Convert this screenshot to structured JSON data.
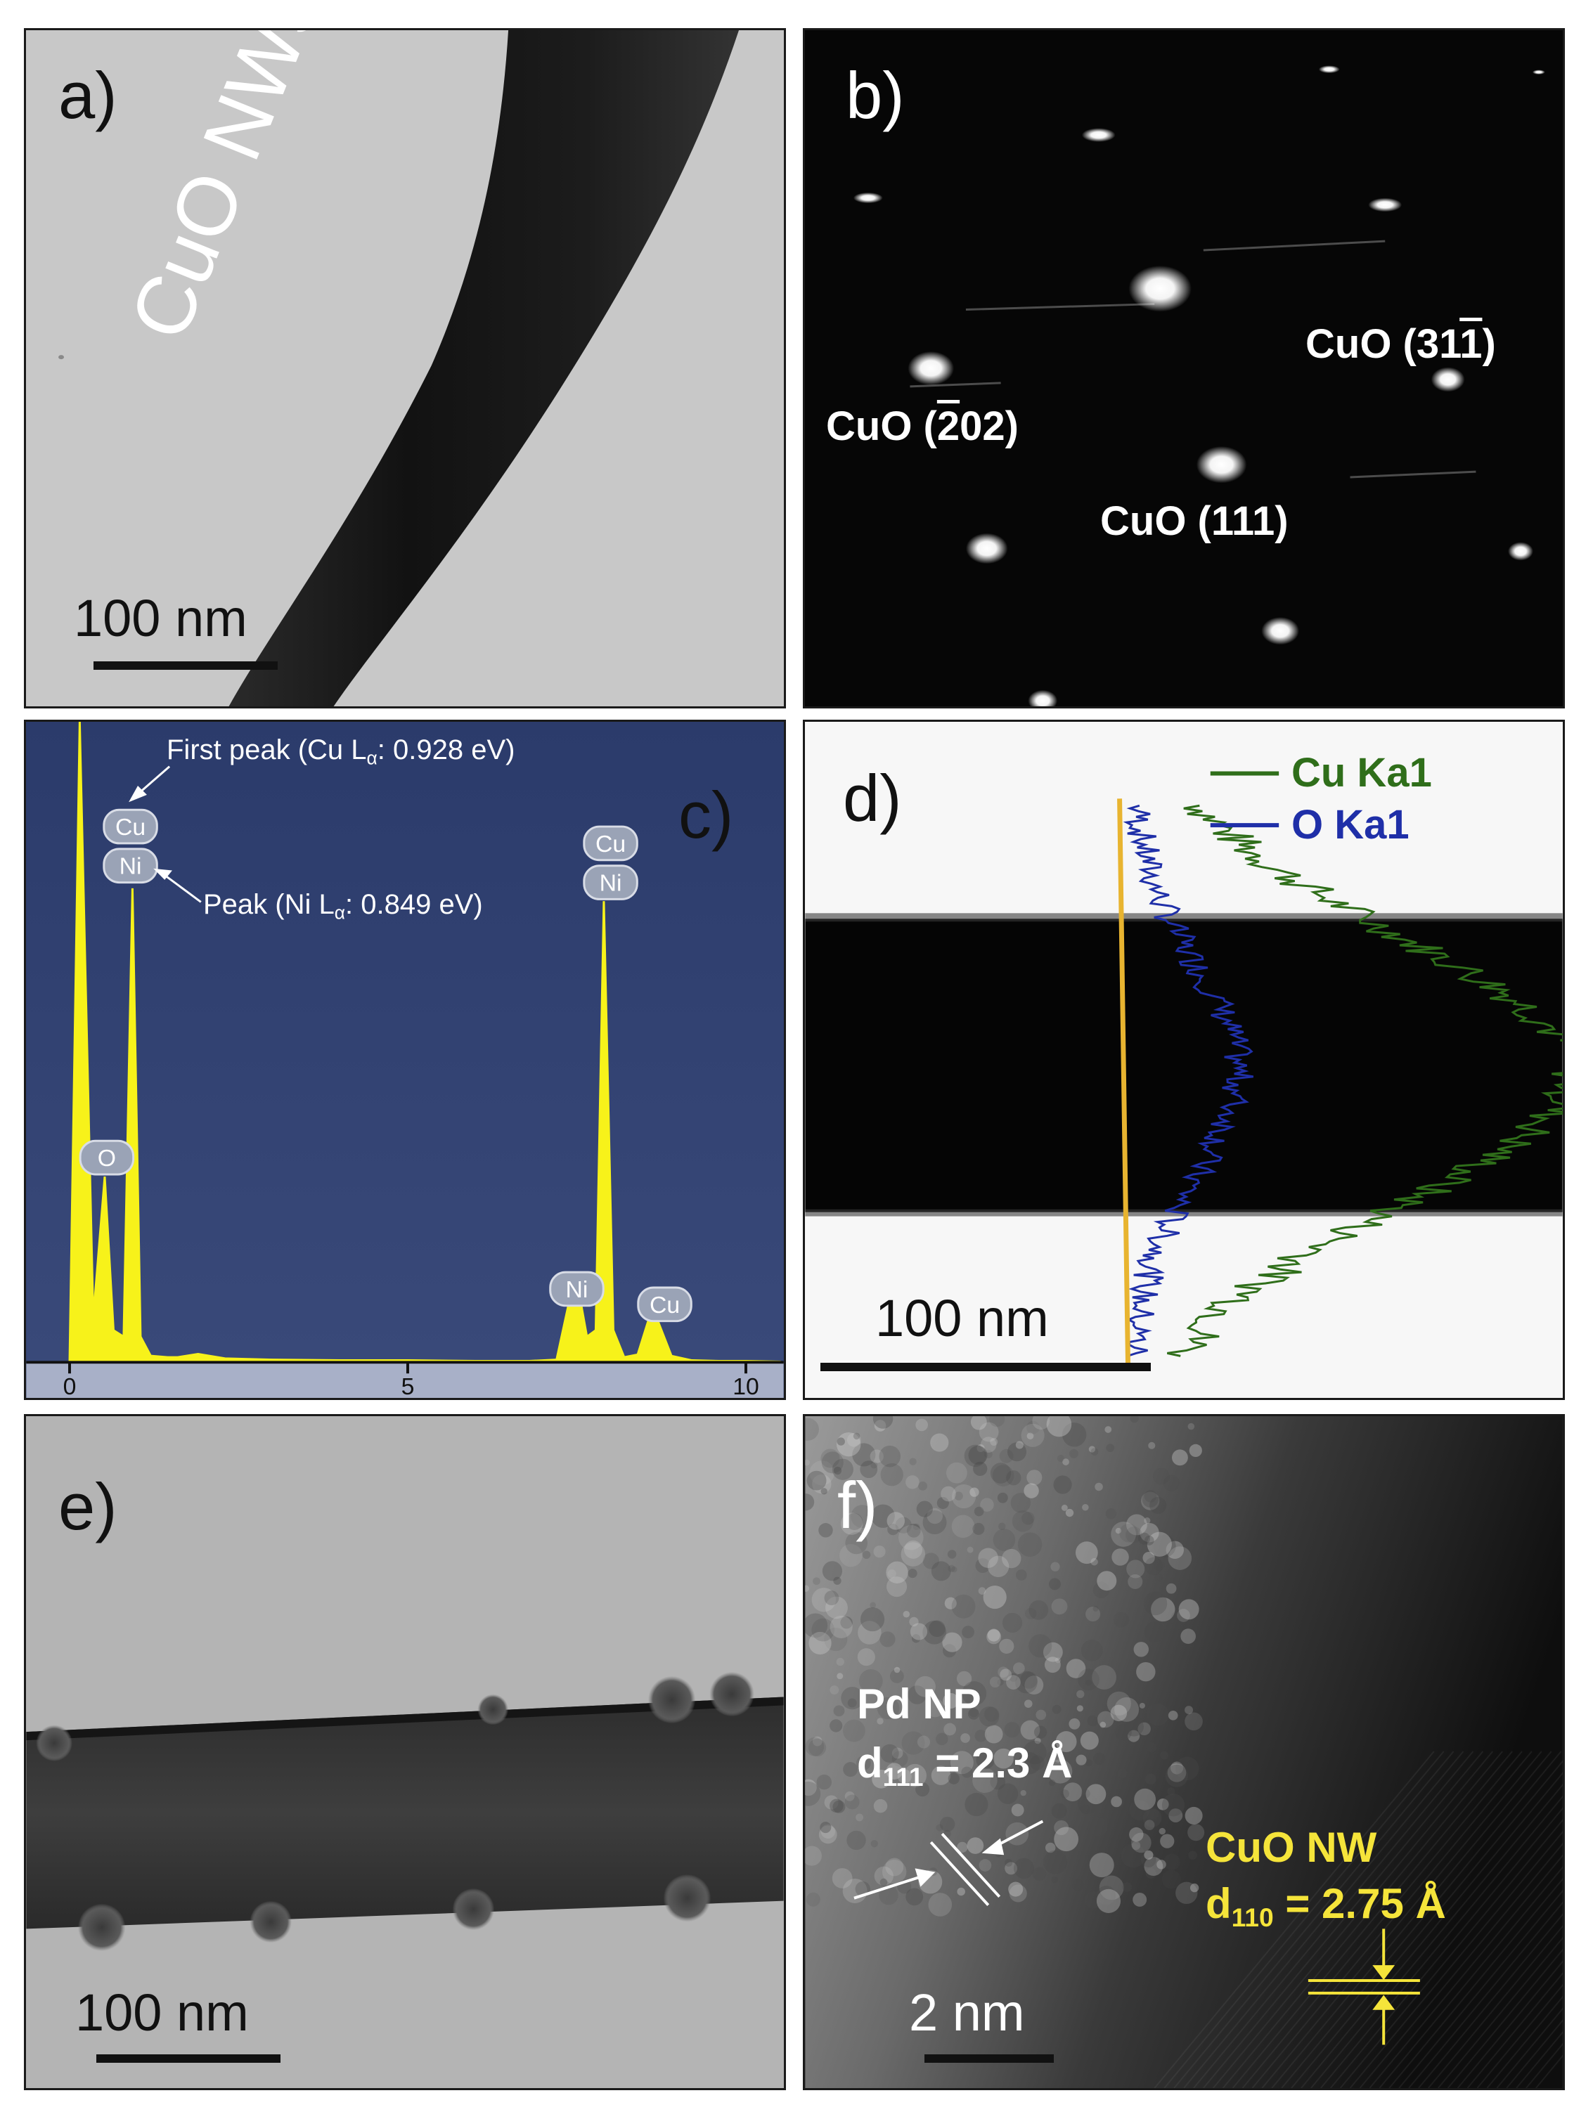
{
  "panels": {
    "a": {
      "letter": "a)",
      "scale": "100 nm",
      "label": "CuO NWs"
    },
    "b": {
      "letter": "b)",
      "spots": [
        {
          "prefix": "CuO (",
          "bar": "2",
          "rest": "02)"
        },
        {
          "prefix": "CuO (111)",
          "bar": "",
          "rest": ""
        },
        {
          "prefix": "CuO (31",
          "bar": "1",
          "rest": ")"
        }
      ]
    },
    "c": {
      "letter": "c)",
      "first_peak_pre": "First peak (Cu L",
      "first_peak_sub": "α",
      "first_peak_post": ": 0.928 eV)",
      "ni_peak_pre": "Peak (Ni L",
      "ni_peak_sub": "α",
      "ni_peak_post": ": 0.849 eV)",
      "elements": {
        "cu": "Cu",
        "ni": "Ni",
        "o": "O"
      },
      "x_ticks": [
        "0",
        "5",
        "10"
      ]
    },
    "d": {
      "letter": "d)",
      "legend": [
        "Cu Ka1",
        "O Ka1"
      ],
      "scale": "100 nm",
      "colors": {
        "cu": "#2f6e1a",
        "o": "#1f2fa8",
        "line": "#e8b430"
      }
    },
    "e": {
      "letter": "e)",
      "scale": "100 nm"
    },
    "f": {
      "letter": "f)",
      "scale": "2 nm",
      "pd_title": "Pd NP",
      "pd_d": "d",
      "pd_sub": "111",
      "pd_val": " = 2.3 Å",
      "cuo_title": "CuO NW",
      "cuo_d": "d",
      "cuo_sub": "110",
      "cuo_val": " = 2.75 Å"
    }
  },
  "chart_data": {
    "type": "line",
    "title": "",
    "xlabel": "",
    "ylabel": "",
    "xlim": [
      -0.5,
      10.7
    ],
    "ylim": [
      0,
      100
    ],
    "x_ticks": [
      0,
      5,
      10
    ],
    "series": [
      {
        "x": [
          -0.3,
          0.0,
          0.15,
          0.35,
          0.52,
          0.65,
          0.8,
          0.93,
          1.05,
          1.2,
          1.45,
          1.6,
          1.9,
          2.3,
          3.0,
          4.0,
          5.0,
          6.0,
          6.8,
          7.2,
          7.48,
          7.65,
          7.78,
          7.9,
          8.04,
          8.2,
          8.4,
          8.62,
          8.9,
          9.2,
          9.6,
          10.0,
          10.5
        ],
        "y": [
          0,
          0,
          100,
          7,
          29,
          5,
          4,
          74,
          4,
          1,
          0.8,
          0.8,
          1.3,
          0.6,
          0.4,
          0.3,
          0.3,
          0.2,
          0.2,
          0.4,
          14,
          4,
          5,
          72,
          5,
          0.8,
          1.2,
          8.6,
          1,
          0.3,
          0.2,
          0.2,
          0.1
        ]
      }
    ]
  }
}
